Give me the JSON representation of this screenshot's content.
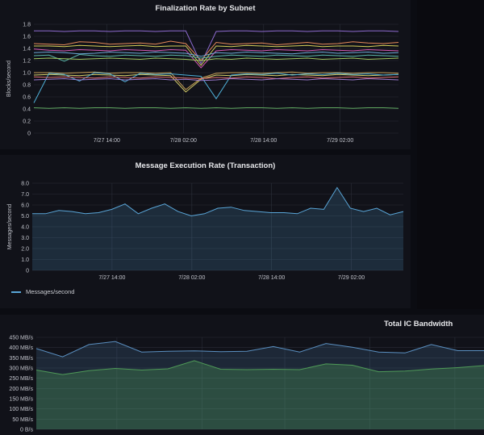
{
  "panels": {
    "finalization": {
      "title": "Finalization Rate by Subnet",
      "ylabel": "Blocks/second"
    },
    "message": {
      "title": "Message Execution Rate (Transaction)",
      "ylabel": "Messages/second",
      "legend": "Messages/second"
    },
    "bandwidth": {
      "title": "Total IC Bandwidth"
    }
  },
  "colors": {
    "background": "#0b0c12",
    "panel": "#111219",
    "grid": "#2a2d38",
    "message_line": "#5aa6d8",
    "bandwidth_top": "#5a8fc0",
    "bandwidth_bottom": "#4f9a58"
  },
  "chart_data": [
    {
      "type": "line",
      "title": "Finalization Rate by Subnet",
      "ylabel": "Blocks/second",
      "xlabel": "",
      "ylim": [
        0,
        1.8
      ],
      "yticks": [
        "0",
        "0.2",
        "0.4",
        "0.6",
        "0.8",
        "1.0",
        "1.2",
        "1.4",
        "1.6",
        "1.8"
      ],
      "xticks": [
        "7/27 14:00",
        "7/28 02:00",
        "7/28 14:00",
        "7/29 02:00"
      ],
      "grid": true,
      "x": [
        0,
        1,
        2,
        3,
        4,
        5,
        6,
        7,
        8,
        9,
        10,
        11,
        12,
        13,
        14,
        15,
        16,
        17,
        18,
        19,
        20,
        21,
        22,
        23,
        24
      ],
      "series": [
        {
          "color": "#8e6bd0",
          "values": [
            1.69,
            1.69,
            1.68,
            1.69,
            1.69,
            1.68,
            1.69,
            1.69,
            1.68,
            1.69,
            1.69,
            1.15,
            1.68,
            1.69,
            1.69,
            1.68,
            1.69,
            1.69,
            1.68,
            1.69,
            1.69,
            1.68,
            1.69,
            1.69,
            1.68
          ]
        },
        {
          "color": "#e58a5a",
          "values": [
            1.48,
            1.47,
            1.46,
            1.51,
            1.5,
            1.47,
            1.48,
            1.49,
            1.47,
            1.52,
            1.48,
            1.2,
            1.5,
            1.47,
            1.48,
            1.49,
            1.46,
            1.48,
            1.5,
            1.47,
            1.48,
            1.51,
            1.49,
            1.48,
            1.5
          ]
        },
        {
          "color": "#d6cf5a",
          "values": [
            1.44,
            1.44,
            1.43,
            1.45,
            1.44,
            1.43,
            1.44,
            1.45,
            1.43,
            1.44,
            1.44,
            1.12,
            1.44,
            1.43,
            1.45,
            1.44,
            1.43,
            1.44,
            1.45,
            1.43,
            1.44,
            1.44,
            1.43,
            1.45,
            1.44
          ]
        },
        {
          "color": "#d65ab5",
          "values": [
            1.39,
            1.37,
            1.36,
            1.38,
            1.37,
            1.36,
            1.38,
            1.37,
            1.36,
            1.38,
            1.37,
            1.08,
            1.36,
            1.38,
            1.37,
            1.36,
            1.38,
            1.37,
            1.36,
            1.38,
            1.37,
            1.36,
            1.38,
            1.37,
            1.36
          ]
        },
        {
          "color": "#6ba8d8",
          "values": [
            1.33,
            1.34,
            1.33,
            1.31,
            1.32,
            1.34,
            1.33,
            1.32,
            1.34,
            1.33,
            1.32,
            1.27,
            1.33,
            1.32,
            1.34,
            1.33,
            1.32,
            1.31,
            1.33,
            1.34,
            1.32,
            1.33,
            1.34,
            1.32,
            1.33
          ]
        },
        {
          "color": "#5ab5a8",
          "values": [
            1.28,
            1.29,
            1.19,
            1.3,
            1.28,
            1.27,
            1.29,
            1.28,
            1.27,
            1.29,
            1.28,
            1.24,
            1.27,
            1.29,
            1.28,
            1.27,
            1.29,
            1.28,
            1.27,
            1.29,
            1.28,
            1.27,
            1.29,
            1.28,
            1.27
          ]
        },
        {
          "color": "#a0c860",
          "values": [
            1.23,
            1.24,
            1.23,
            1.22,
            1.23,
            1.24,
            1.23,
            1.22,
            1.24,
            1.23,
            1.22,
            1.2,
            1.23,
            1.22,
            1.24,
            1.23,
            1.22,
            1.23,
            1.24,
            1.22,
            1.23,
            1.24,
            1.22,
            1.23,
            1.24
          ]
        },
        {
          "color": "#c8a058",
          "values": [
            1.0,
            1.0,
            0.99,
            1.0,
            1.01,
            0.99,
            1.0,
            1.0,
            0.99,
            1.0,
            0.72,
            0.91,
            0.99,
            1.0,
            1.0,
            0.99,
            1.0,
            1.01,
            0.99,
            1.0,
            1.0,
            0.99,
            1.0,
            1.0,
            0.99
          ]
        },
        {
          "color": "#d8d06a",
          "values": [
            0.96,
            0.97,
            0.96,
            0.95,
            0.97,
            0.96,
            0.95,
            0.97,
            0.96,
            0.95,
            0.68,
            0.89,
            0.96,
            0.95,
            0.97,
            0.96,
            0.95,
            0.97,
            0.96,
            0.95,
            0.97,
            0.96,
            0.95,
            0.96,
            0.97
          ]
        },
        {
          "color": "#4fb0d8",
          "values": [
            0.5,
            0.99,
            0.97,
            0.86,
            1.0,
            0.98,
            0.85,
            0.99,
            0.97,
            0.98,
            0.96,
            0.94,
            0.57,
            0.96,
            0.98,
            0.97,
            0.99,
            0.96,
            0.98,
            0.97,
            0.99,
            0.97,
            0.98,
            0.96,
            0.97
          ]
        },
        {
          "color": "#e07070",
          "values": [
            0.93,
            0.92,
            0.93,
            0.92,
            0.91,
            0.93,
            0.92,
            0.91,
            0.93,
            0.92,
            0.91,
            0.9,
            0.92,
            0.91,
            0.93,
            0.92,
            0.9,
            0.92,
            0.93,
            0.91,
            0.92,
            0.93,
            0.91,
            0.92,
            0.93
          ]
        },
        {
          "color": "#9a7ad0",
          "values": [
            0.88,
            0.89,
            0.9,
            0.88,
            0.89,
            0.9,
            0.88,
            0.89,
            0.9,
            0.88,
            0.89,
            0.87,
            0.88,
            0.9,
            0.89,
            0.88,
            0.9,
            0.89,
            0.88,
            0.9,
            0.89,
            0.88,
            0.9,
            0.89,
            0.88
          ]
        },
        {
          "color": "#5fa860",
          "values": [
            0.42,
            0.41,
            0.42,
            0.41,
            0.42,
            0.42,
            0.41,
            0.42,
            0.42,
            0.41,
            0.42,
            0.41,
            0.42,
            0.41,
            0.42,
            0.42,
            0.41,
            0.42,
            0.41,
            0.42,
            0.42,
            0.41,
            0.42,
            0.42,
            0.41
          ]
        }
      ]
    },
    {
      "type": "area",
      "title": "Message Execution Rate (Transaction)",
      "ylabel": "Messages/second",
      "xlabel": "",
      "ylim": [
        0,
        8
      ],
      "yticks": [
        "0",
        "1.0",
        "2.0",
        "3.0",
        "4.0",
        "5.0",
        "6.0",
        "7.0",
        "8.0"
      ],
      "xticks": [
        "7/27 14:00",
        "7/28 02:00",
        "7/28 14:00",
        "7/29 02:00"
      ],
      "grid": true,
      "legend": "bottom-left",
      "series": [
        {
          "name": "Messages/second",
          "values": [
            5.2,
            5.2,
            5.5,
            5.4,
            5.2,
            5.3,
            5.6,
            6.1,
            5.2,
            5.7,
            6.1,
            5.4,
            5.0,
            5.2,
            5.7,
            5.8,
            5.5,
            5.4,
            5.3,
            5.3,
            5.2,
            5.7,
            5.6,
            7.6,
            5.7,
            5.4,
            5.7,
            5.1,
            5.4
          ]
        }
      ]
    },
    {
      "type": "area",
      "title": "Total IC Bandwidth",
      "ylabel": "",
      "xlabel": "",
      "ylim": [
        0,
        450
      ],
      "yticks": [
        "0 B/s",
        "50 MB/s",
        "100 MB/s",
        "150 MB/s",
        "200 MB/s",
        "250 MB/s",
        "300 MB/s",
        "350 MB/s",
        "400 MB/s",
        "450 MB/s"
      ],
      "grid": true,
      "series": [
        {
          "values": [
            395,
            355,
            415,
            430,
            378,
            382,
            384,
            380,
            382,
            405,
            378,
            420,
            402,
            378,
            374,
            415,
            385,
            385
          ]
        },
        {
          "values": [
            290,
            268,
            287,
            298,
            290,
            296,
            336,
            294,
            292,
            294,
            292,
            320,
            314,
            282,
            285,
            295,
            302,
            312
          ]
        }
      ]
    }
  ]
}
